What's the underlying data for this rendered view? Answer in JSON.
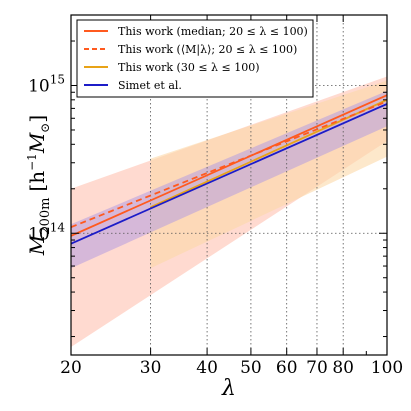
{
  "chart_data": {
    "type": "line",
    "xlabel": "λ",
    "ylabel_main": "M",
    "ylabel_sub": "200m",
    "ylabel_unit": "[h",
    "ylabel_unit_sup": "−1",
    "ylabel_unit_tail": "M",
    "ylabel_unit_sub": "⊙",
    "ylabel_close": "]",
    "x_scale": "log",
    "y_scale": "log",
    "xlim": [
      20,
      100
    ],
    "ylim": [
      15000000000000,
      3000000000000000
    ],
    "x_ticks": [
      20,
      30,
      40,
      50,
      60,
      70,
      80,
      100
    ],
    "x_tick_labels": [
      "20",
      "30",
      "40",
      "50",
      "60",
      "70",
      "80",
      "100"
    ],
    "y_ticks": [
      {
        "value": 100000000000000,
        "base": "10",
        "exp": "14"
      },
      {
        "value": 1000000000000000,
        "base": "10",
        "exp": "15"
      }
    ],
    "grid": true,
    "legend_position": "top-left",
    "series": [
      {
        "name": "This work (median;  20 ≤ λ ≤ 100)",
        "color": "#ff5a1f",
        "dash": "solid",
        "x": [
          20,
          100
        ],
        "y": [
          96000000000000,
          860000000000000
        ],
        "band": {
          "x": [
            20,
            100
          ],
          "lower": [
            17000000000000,
            420000000000000
          ],
          "upper": [
            200000000000000,
            1150000000000000
          ],
          "color": "#ffc2b0"
        }
      },
      {
        "name": "This work (⟨M|λ⟩;  20 ≤ λ ≤ 100)",
        "color": "#ff5a1f",
        "dash": "dashed",
        "x": [
          20,
          100
        ],
        "y": [
          110000000000000,
          780000000000000
        ]
      },
      {
        "name": "This work (30 ≤ λ ≤ 100)",
        "color": "#e8a317",
        "dash": "solid",
        "x": [
          30,
          100
        ],
        "y": [
          150000000000000,
          800000000000000
        ],
        "band": {
          "x": [
            30,
            100
          ],
          "lower": [
            58000000000000,
            330000000000000
          ],
          "upper": [
            320000000000000,
            1080000000000000
          ],
          "color": "#fbd8a8"
        }
      },
      {
        "name": "Simet et al.",
        "color": "#1c1cc8",
        "dash": "solid",
        "x": [
          20,
          100
        ],
        "y": [
          85000000000000,
          750000000000000
        ],
        "band": {
          "x": [
            20,
            100
          ],
          "lower": [
            58000000000000,
            530000000000000
          ],
          "upper": [
            115000000000000,
            920000000000000
          ],
          "color": "#b49ce0"
        }
      }
    ]
  }
}
